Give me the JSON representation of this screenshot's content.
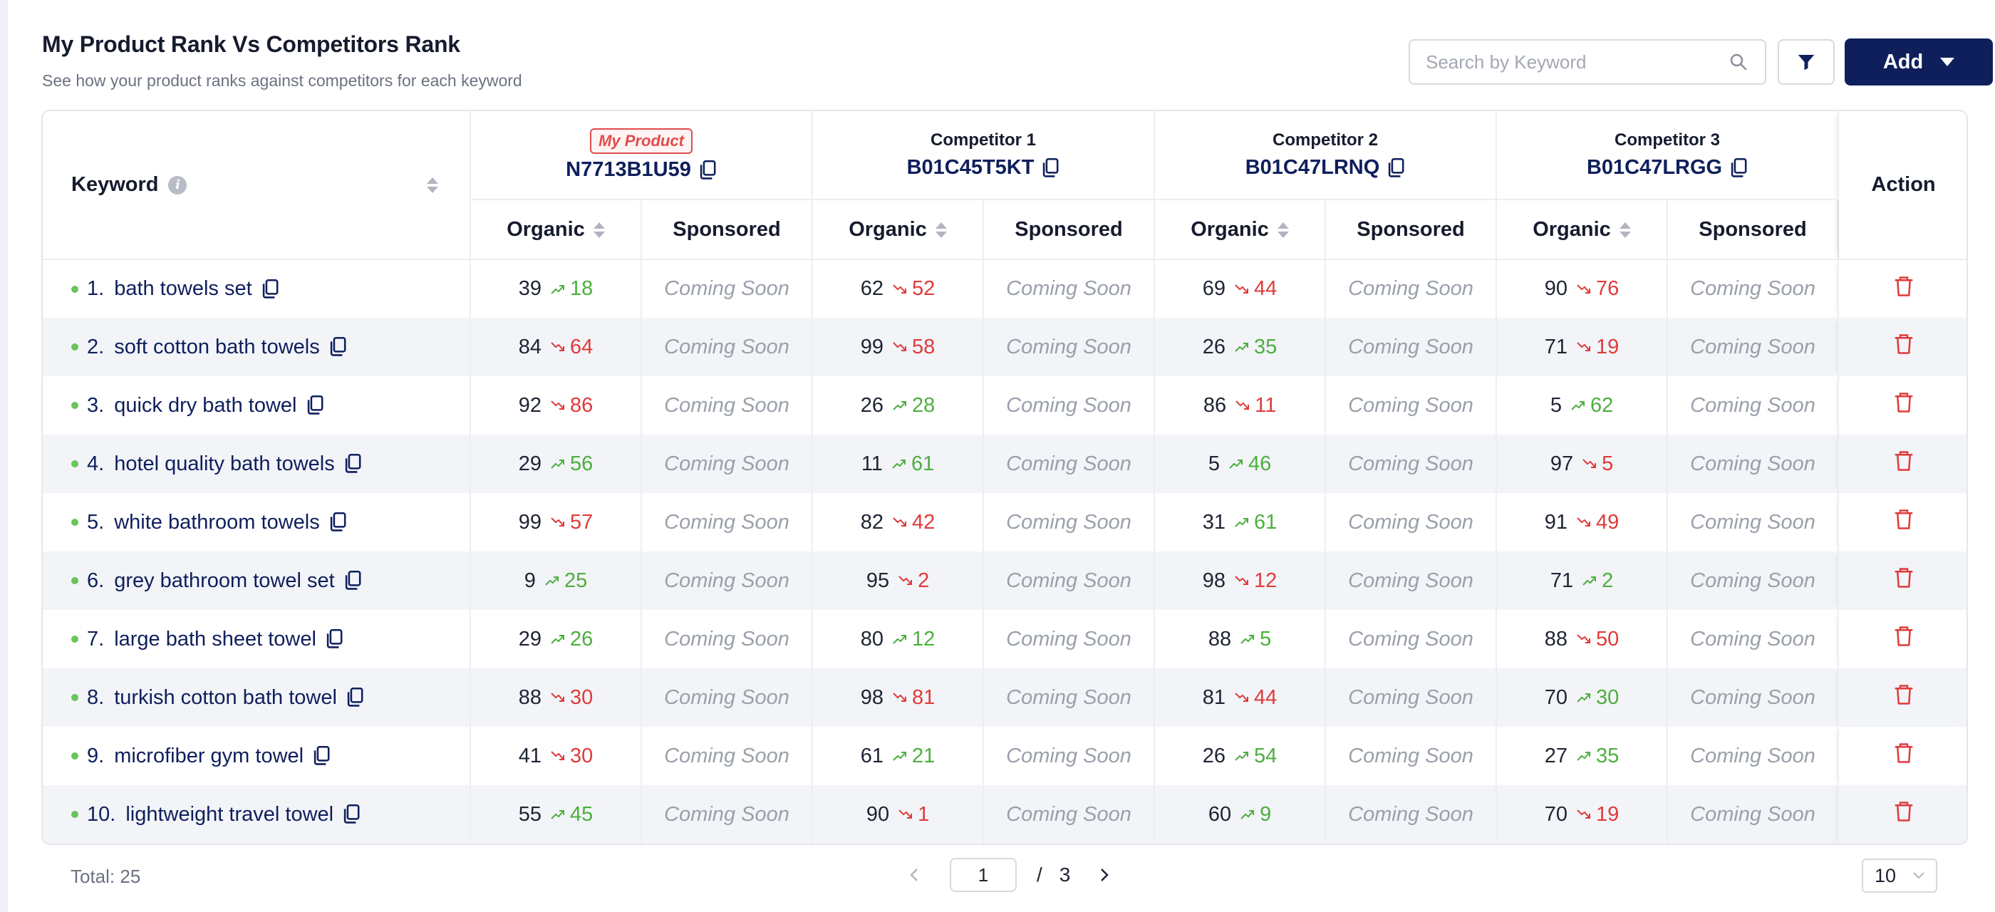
{
  "header": {
    "title": "My Product Rank Vs Competitors Rank",
    "subtitle": "See how your product ranks against competitors for each keyword",
    "search_placeholder": "Search by Keyword",
    "add_label": "Add"
  },
  "columns": {
    "keyword": "Keyword",
    "organic": "Organic",
    "sponsored": "Sponsored",
    "action": "Action",
    "my_product_badge": "My Product",
    "products": [
      {
        "label": "",
        "asin": "N7713B1U59"
      },
      {
        "label": "Competitor 1",
        "asin": "B01C45T5KT"
      },
      {
        "label": "Competitor 2",
        "asin": "B01C47LRNQ"
      },
      {
        "label": "Competitor 3",
        "asin": "B01C47LRGG"
      }
    ]
  },
  "sponsored_text": "Coming Soon",
  "rows": [
    {
      "num": "1.",
      "keyword": "bath towels set",
      "ranks": [
        {
          "current": "39",
          "trend": "up",
          "change": "18"
        },
        {
          "current": "62",
          "trend": "down",
          "change": "52"
        },
        {
          "current": "69",
          "trend": "down",
          "change": "44"
        },
        {
          "current": "90",
          "trend": "down",
          "change": "76"
        }
      ]
    },
    {
      "num": "2.",
      "keyword": "soft cotton bath towels",
      "ranks": [
        {
          "current": "84",
          "trend": "down",
          "change": "64"
        },
        {
          "current": "99",
          "trend": "down",
          "change": "58"
        },
        {
          "current": "26",
          "trend": "up",
          "change": "35"
        },
        {
          "current": "71",
          "trend": "down",
          "change": "19"
        }
      ]
    },
    {
      "num": "3.",
      "keyword": "quick dry bath towel",
      "ranks": [
        {
          "current": "92",
          "trend": "down",
          "change": "86"
        },
        {
          "current": "26",
          "trend": "up",
          "change": "28"
        },
        {
          "current": "86",
          "trend": "down",
          "change": "11"
        },
        {
          "current": "5",
          "trend": "up",
          "change": "62"
        }
      ]
    },
    {
      "num": "4.",
      "keyword": "hotel quality bath towels",
      "ranks": [
        {
          "current": "29",
          "trend": "up",
          "change": "56"
        },
        {
          "current": "11",
          "trend": "up",
          "change": "61"
        },
        {
          "current": "5",
          "trend": "up",
          "change": "46"
        },
        {
          "current": "97",
          "trend": "down",
          "change": "5"
        }
      ]
    },
    {
      "num": "5.",
      "keyword": "white bathroom towels",
      "ranks": [
        {
          "current": "99",
          "trend": "down",
          "change": "57"
        },
        {
          "current": "82",
          "trend": "down",
          "change": "42"
        },
        {
          "current": "31",
          "trend": "up",
          "change": "61"
        },
        {
          "current": "91",
          "trend": "down",
          "change": "49"
        }
      ]
    },
    {
      "num": "6.",
      "keyword": "grey bathroom towel set",
      "ranks": [
        {
          "current": "9",
          "trend": "up",
          "change": "25"
        },
        {
          "current": "95",
          "trend": "down",
          "change": "2"
        },
        {
          "current": "98",
          "trend": "down",
          "change": "12"
        },
        {
          "current": "71",
          "trend": "up",
          "change": "2"
        }
      ]
    },
    {
      "num": "7.",
      "keyword": "large bath sheet towel",
      "ranks": [
        {
          "current": "29",
          "trend": "up",
          "change": "26"
        },
        {
          "current": "80",
          "trend": "up",
          "change": "12"
        },
        {
          "current": "88",
          "trend": "up",
          "change": "5"
        },
        {
          "current": "88",
          "trend": "down",
          "change": "50"
        }
      ]
    },
    {
      "num": "8.",
      "keyword": "turkish cotton bath towel",
      "ranks": [
        {
          "current": "88",
          "trend": "down",
          "change": "30"
        },
        {
          "current": "98",
          "trend": "down",
          "change": "81"
        },
        {
          "current": "81",
          "trend": "down",
          "change": "44"
        },
        {
          "current": "70",
          "trend": "up",
          "change": "30"
        }
      ]
    },
    {
      "num": "9.",
      "keyword": "microfiber gym towel",
      "ranks": [
        {
          "current": "41",
          "trend": "down",
          "change": "30"
        },
        {
          "current": "61",
          "trend": "up",
          "change": "21"
        },
        {
          "current": "26",
          "trend": "up",
          "change": "54"
        },
        {
          "current": "27",
          "trend": "up",
          "change": "35"
        }
      ]
    },
    {
      "num": "10.",
      "keyword": "lightweight travel towel",
      "ranks": [
        {
          "current": "55",
          "trend": "up",
          "change": "45"
        },
        {
          "current": "90",
          "trend": "down",
          "change": "1"
        },
        {
          "current": "60",
          "trend": "up",
          "change": "9"
        },
        {
          "current": "70",
          "trend": "down",
          "change": "19"
        }
      ]
    }
  ],
  "footer": {
    "total_label": "Total: 25",
    "current_page": "1",
    "separator": "/",
    "total_pages": "3",
    "page_size": "10"
  },
  "colors": {
    "primary": "#0f1f5c",
    "trend_up": "#4caf3d",
    "trend_down": "#e03a3a",
    "delete": "#e03a3a"
  }
}
